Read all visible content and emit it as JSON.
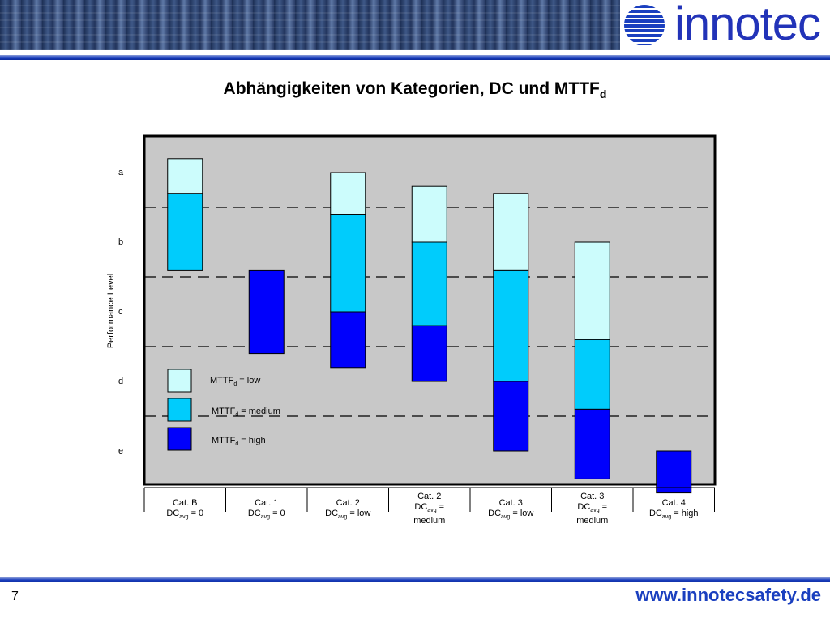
{
  "header": {
    "logo_text": "innotec"
  },
  "title": {
    "main": "Abhängigkeiten von Kategorien, DC und MTTF",
    "sub": "d"
  },
  "footer": {
    "slide_number": "7",
    "website": "www.innotecsafety.de"
  },
  "colors": {
    "low": "#ccfcfc",
    "medium": "#00ccfc",
    "high": "#0000fc",
    "plot_bg": "#c8c8c8"
  },
  "chart_data": {
    "type": "bar",
    "ylabel": "Performance Level",
    "levels": [
      "a",
      "b",
      "c",
      "d",
      "e"
    ],
    "legend": [
      {
        "key": "low",
        "label": "MTTF",
        "sub": "d",
        "suffix": " = low"
      },
      {
        "key": "medium",
        "label": "MTTF",
        "sub": "d",
        "suffix": " = medium"
      },
      {
        "key": "high",
        "label": "MTTF",
        "sub": "d",
        "suffix": " = high"
      }
    ],
    "categories": [
      {
        "line1": "Cat. B",
        "dc": "DC",
        "dc_sub": "avg",
        "dc_val": " = 0",
        "line3": ""
      },
      {
        "line1": "Cat. 1",
        "dc": "DC",
        "dc_sub": "avg",
        "dc_val": " = 0",
        "line3": ""
      },
      {
        "line1": "Cat. 2",
        "dc": "DC",
        "dc_sub": "avg",
        "dc_val": " = low",
        "line3": ""
      },
      {
        "line1": "Cat. 2",
        "dc": "DC",
        "dc_sub": "avg",
        "dc_val": " =",
        "line3": "medium"
      },
      {
        "line1": "Cat. 3",
        "dc": "DC",
        "dc_sub": "avg",
        "dc_val": " = low",
        "line3": ""
      },
      {
        "line1": "Cat. 3",
        "dc": "DC",
        "dc_sub": "avg",
        "dc_val": " =",
        "line3": "medium"
      },
      {
        "line1": "Cat. 4",
        "dc": "DC",
        "dc_sub": "avg",
        "dc_val": " = high",
        "line3": ""
      }
    ],
    "bars": [
      [
        {
          "mttf": "low",
          "from": 0.3,
          "to": 0.8
        },
        {
          "mttf": "medium",
          "from": 0.8,
          "to": 1.9
        }
      ],
      [
        {
          "mttf": "high",
          "from": 1.9,
          "to": 3.1
        }
      ],
      [
        {
          "mttf": "low",
          "from": 0.5,
          "to": 1.1
        },
        {
          "mttf": "medium",
          "from": 1.1,
          "to": 2.5
        },
        {
          "mttf": "high",
          "from": 2.5,
          "to": 3.3
        }
      ],
      [
        {
          "mttf": "low",
          "from": 0.7,
          "to": 1.5
        },
        {
          "mttf": "medium",
          "from": 1.5,
          "to": 2.7
        },
        {
          "mttf": "high",
          "from": 2.7,
          "to": 3.5
        }
      ],
      [
        {
          "mttf": "low",
          "from": 0.8,
          "to": 1.9
        },
        {
          "mttf": "medium",
          "from": 1.9,
          "to": 3.5
        },
        {
          "mttf": "high",
          "from": 3.5,
          "to": 4.5
        }
      ],
      [
        {
          "mttf": "low",
          "from": 1.5,
          "to": 2.9
        },
        {
          "mttf": "medium",
          "from": 2.9,
          "to": 3.9
        },
        {
          "mttf": "high",
          "from": 3.9,
          "to": 4.9
        }
      ],
      [
        {
          "mttf": "high",
          "from": 4.5,
          "to": 5.1
        }
      ]
    ]
  }
}
